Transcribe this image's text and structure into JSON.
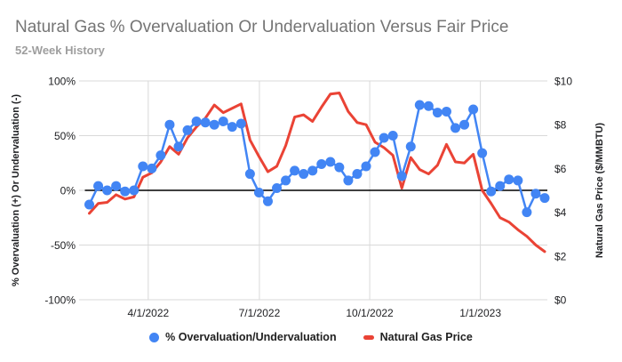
{
  "header": {
    "title": "Natural Gas % Overvaluation Or Undervaluation Versus Fair Price",
    "subtitle": "52-Week History"
  },
  "chart_data": {
    "type": "line",
    "dual_axis": true,
    "weeks": 52,
    "grid": true,
    "legend_position": "bottom",
    "colors": {
      "gridline": "#d9d9d9",
      "zero_line": "#000000",
      "tick_text": "#202124",
      "blue": "#4285f4",
      "red": "#ea4335"
    },
    "x_axis": {
      "ticks": [
        {
          "week": 6.6,
          "label": "4/1/2022"
        },
        {
          "week": 19.05,
          "label": "7/1/2022"
        },
        {
          "week": 31.4,
          "label": "10/1/2022"
        },
        {
          "week": 43.8,
          "label": "1/1/2023"
        }
      ]
    },
    "left_axis": {
      "title": "% Overvaluation (+) Or Undervaluation (-)",
      "min": -100,
      "max": 100,
      "ticks": [
        {
          "value": 100,
          "label": "100%"
        },
        {
          "value": 50,
          "label": "50%"
        },
        {
          "value": 0,
          "label": "0%"
        },
        {
          "value": -50,
          "label": "-50%"
        },
        {
          "value": -100,
          "label": "-100%"
        }
      ]
    },
    "right_axis": {
      "title": "Natural Gas Price ($/MMBTU)",
      "min": 0,
      "max": 10,
      "ticks": [
        {
          "value": 10,
          "label": "$10"
        },
        {
          "value": 8,
          "label": "$8"
        },
        {
          "value": 6,
          "label": "$6"
        },
        {
          "value": 4,
          "label": "$4"
        },
        {
          "value": 2,
          "label": "$2"
        },
        {
          "value": 0,
          "label": "$0"
        }
      ]
    },
    "series": [
      {
        "name": "% Overvaluation/Undervaluation",
        "axis": "left",
        "color": "#4285f4",
        "style": "line_with_points",
        "values": [
          -13,
          4,
          0,
          4,
          -1,
          0,
          22,
          20,
          32,
          60,
          40,
          55,
          63,
          62,
          60,
          63,
          58,
          61,
          15,
          -2,
          -10,
          2,
          9,
          18,
          15,
          18,
          24,
          26,
          21,
          9,
          15,
          22,
          35,
          48,
          50,
          13,
          40,
          78,
          77,
          71,
          72,
          57,
          60,
          74,
          34,
          -1,
          4,
          10,
          9,
          -20,
          -3,
          -7
        ]
      },
      {
        "name": "Natural Gas Price",
        "axis": "right",
        "color": "#ea4335",
        "style": "line",
        "values": [
          3.95,
          4.4,
          4.45,
          4.8,
          4.6,
          4.7,
          5.6,
          5.8,
          6.3,
          7.0,
          6.65,
          7.4,
          7.9,
          8.3,
          8.9,
          8.55,
          8.75,
          8.95,
          7.3,
          6.55,
          5.85,
          6.1,
          7.05,
          8.35,
          8.45,
          8.15,
          8.8,
          9.4,
          9.45,
          8.6,
          8.1,
          8.0,
          7.2,
          6.95,
          6.6,
          5.1,
          6.5,
          5.95,
          5.75,
          6.15,
          7.1,
          6.3,
          6.25,
          6.65,
          5.0,
          4.4,
          3.75,
          3.55,
          3.2,
          2.9,
          2.5,
          2.2
        ]
      }
    ]
  }
}
